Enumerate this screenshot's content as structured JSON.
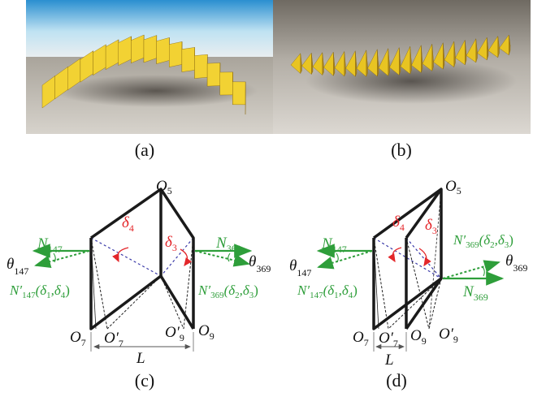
{
  "captions": {
    "a": "(a)",
    "b": "(b)",
    "c": "(c)",
    "d": "(d)"
  },
  "colors": {
    "green": "#2e9e3a",
    "red": "#e3262a",
    "blue_dashed": "#3b3ba8",
    "gold": "#e8c020",
    "sky": "#38a0d8"
  },
  "diagram_c": {
    "o5": "O",
    "o5_sub": "5",
    "o7": "O",
    "o7_sub": "7",
    "o9": "O",
    "o9_sub": "9",
    "o7p": "O′",
    "o7p_sub": "7",
    "o9p": "O′",
    "o9p_sub": "9",
    "delta3": "δ",
    "delta3_sub": "3",
    "delta4": "δ",
    "delta4_sub": "4",
    "n147": "N",
    "n147_sub": "147",
    "n369": "N",
    "n369_sub": "369",
    "theta147": "θ",
    "theta147_sub": "147",
    "theta369": "θ",
    "theta369_sub": "369",
    "n147p": "N′",
    "n147p_sub": "147",
    "n147p_args": "(δ",
    "n147p_arg1": "1",
    "n147p_mid": ",δ",
    "n147p_arg2": "4",
    "n147p_end": ")",
    "n369p": "N′",
    "n369p_sub": "369",
    "n369p_args": "(δ",
    "n369p_arg1": "2",
    "n369p_mid": ",δ",
    "n369p_arg2": "3",
    "n369p_end": ")",
    "length": "L"
  },
  "diagram_d": {
    "o5": "O",
    "o5_sub": "5",
    "o7": "O",
    "o7_sub": "7",
    "o9": "O",
    "o9_sub": "9",
    "o7p": "O′",
    "o7p_sub": "7",
    "o9p": "O′",
    "o9p_sub": "9",
    "delta3": "δ",
    "delta3_sub": "3",
    "delta4": "δ",
    "delta4_sub": "4",
    "n147": "N",
    "n147_sub": "147",
    "n369": "N",
    "n369_sub": "369",
    "theta147": "θ",
    "theta147_sub": "147",
    "theta369": "θ",
    "theta369_sub": "369",
    "n147p": "N′",
    "n147p_sub": "147",
    "n147p_args": "(δ",
    "n147p_arg1": "1",
    "n147p_mid": ",δ",
    "n147p_arg2": "4",
    "n147p_end": ")",
    "n369p": "N′",
    "n369p_sub": "369",
    "n369p_args": "(δ",
    "n369p_arg1": "2",
    "n369p_mid": ",δ",
    "n369p_arg2": "3",
    "n369p_end": ")",
    "length": "L"
  }
}
